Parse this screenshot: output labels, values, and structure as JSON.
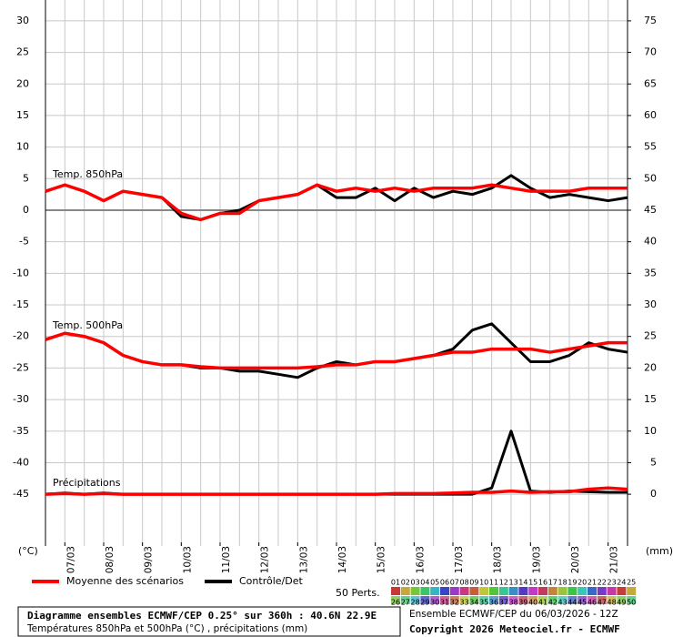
{
  "chart_data": {
    "type": "line",
    "x": [
      0,
      12,
      24,
      36,
      48,
      60,
      72,
      84,
      96,
      108,
      120,
      132,
      144,
      156,
      168,
      180,
      192,
      204,
      216,
      228,
      240,
      252,
      264,
      276,
      288,
      300,
      312,
      324,
      336,
      348,
      360
    ],
    "xlim": [
      0,
      360
    ],
    "xticks": [
      {
        "value": 12,
        "label": "07/03"
      },
      {
        "value": 36,
        "label": "08/03"
      },
      {
        "value": 60,
        "label": "09/03"
      },
      {
        "value": 84,
        "label": "10/03"
      },
      {
        "value": 108,
        "label": "11/03"
      },
      {
        "value": 132,
        "label": "12/03"
      },
      {
        "value": 156,
        "label": "13/03"
      },
      {
        "value": 180,
        "label": "14/03"
      },
      {
        "value": 204,
        "label": "15/03"
      },
      {
        "value": 228,
        "label": "16/03"
      },
      {
        "value": 252,
        "label": "17/03"
      },
      {
        "value": 276,
        "label": "18/03"
      },
      {
        "value": 300,
        "label": "19/03"
      },
      {
        "value": 324,
        "label": "20/03"
      },
      {
        "value": 348,
        "label": "21/03"
      }
    ],
    "ylim": [
      -53.2,
      33.3
    ],
    "yticks": [
      30,
      25,
      20,
      15,
      10,
      5,
      0,
      -5,
      -10,
      -15,
      -20,
      -25,
      -30,
      -35,
      -40,
      -45
    ],
    "y2lim": [
      -8.2,
      78.3
    ],
    "y2ticks": [
      75,
      70,
      65,
      60,
      55,
      50,
      45,
      40,
      35,
      30,
      25,
      20,
      15,
      10,
      5,
      0
    ],
    "y_unit": "(°C)",
    "y2_unit": "(mm)",
    "grid": true,
    "annotations": [
      "Temp. 850hPa",
      "Temp. 500hPa",
      "Précipitations"
    ],
    "series": [
      {
        "name": "Moyenne des scénarios",
        "color": "#ff0000",
        "values": [
          3,
          4,
          3,
          1.5,
          3,
          2.5,
          2,
          -0.5,
          -1.5,
          -0.5,
          -0.5,
          1.5,
          2,
          2.5,
          4,
          3,
          3.5,
          3,
          3.5,
          3,
          3.5,
          3.5,
          3.5,
          4,
          3.5,
          3,
          3,
          3,
          3.5,
          3.5,
          3.5
        ],
        "values_500": [
          -20.5,
          -19.5,
          -20,
          -21,
          -23,
          -24,
          -24.5,
          -24.5,
          -24.8,
          -25,
          -25,
          -25,
          -25,
          -25,
          -24.8,
          -24.5,
          -24.5,
          -24,
          -24,
          -23.5,
          -23,
          -22.5,
          -22.5,
          -22,
          -22,
          -22,
          -22.5,
          -22,
          -21.5,
          -21,
          -21
        ],
        "values_precip": [
          0,
          0.1,
          0,
          0.1,
          0,
          0,
          0,
          0,
          0,
          0,
          0,
          0,
          0,
          0,
          0,
          0,
          0,
          0,
          0.1,
          0.1,
          0.1,
          0.2,
          0.3,
          0.3,
          0.5,
          0.3,
          0.4,
          0.4,
          0.8,
          1,
          0.8
        ]
      },
      {
        "name": "Contrôle/Det",
        "color": "#000000",
        "values": [
          3,
          4,
          3,
          1.5,
          3,
          2.5,
          2,
          -1,
          -1.5,
          -0.5,
          0,
          1.5,
          2,
          2.5,
          4,
          2,
          2,
          3.5,
          1.5,
          3.5,
          2,
          3,
          2.5,
          3.5,
          5.5,
          3.5,
          2,
          2.5,
          2,
          1.5,
          2
        ],
        "values_500": [
          -20.5,
          -19.5,
          -20,
          -21,
          -23,
          -24,
          -24.5,
          -24.5,
          -25,
          -25,
          -25.5,
          -25.5,
          -26,
          -26.5,
          -25,
          -24,
          -24.5,
          -24,
          -24,
          -23.5,
          -23,
          -22,
          -19,
          -18,
          -21,
          -24,
          -24,
          -23,
          -21,
          -22,
          -22.5
        ],
        "values_precip": [
          0,
          0.2,
          0,
          0.2,
          0,
          0,
          0,
          0,
          0,
          0,
          0,
          0,
          0,
          0,
          0,
          0,
          0,
          0,
          0,
          0,
          0,
          0,
          0,
          1,
          10,
          0.5,
          0.3,
          0.5,
          0.4,
          0.3,
          0.3
        ]
      }
    ],
    "members_label": "50 Perts.",
    "members": [
      "01",
      "02",
      "03",
      "04",
      "05",
      "06",
      "07",
      "08",
      "09",
      "10",
      "11",
      "12",
      "13",
      "14",
      "15",
      "16",
      "17",
      "18",
      "19",
      "20",
      "21",
      "22",
      "23",
      "24",
      "25",
      "26",
      "27",
      "28",
      "29",
      "30",
      "31",
      "32",
      "33",
      "34",
      "35",
      "36",
      "37",
      "38",
      "39",
      "40",
      "41",
      "42",
      "43",
      "44",
      "45",
      "46",
      "47",
      "48",
      "49",
      "50"
    ],
    "footer": {
      "title": "Diagramme ensembles ECMWF/CEP 0.25° sur 360h : 40.6N 22.9E",
      "subtitle": "Températures 850hPa et 500hPa (°C) , précipitations (mm)",
      "run": "Ensemble ECMWF/CEP du 06/03/2026 - 12Z",
      "copyright": "Copyright 2026 Meteociel.fr - ECMWF"
    }
  }
}
